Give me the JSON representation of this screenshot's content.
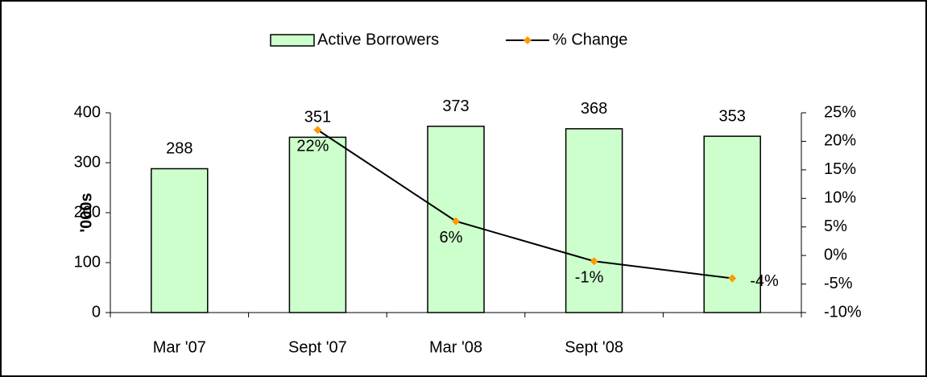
{
  "chart_data": {
    "type": "bar-line",
    "categories": [
      "Mar '07",
      "Sept '07",
      "Mar '08",
      "Sept '08",
      null
    ],
    "ylabel": "'000s",
    "ylim": [
      0,
      400
    ],
    "yticks": [
      0,
      100,
      200,
      300,
      400
    ],
    "y2lim": [
      -10,
      25
    ],
    "y2ticks": [
      {
        "value": -10,
        "label": "-10%"
      },
      {
        "value": -5,
        "label": "-5%"
      },
      {
        "value": 0,
        "label": "0%"
      },
      {
        "value": 5,
        "label": "5%"
      },
      {
        "value": 10,
        "label": "10%"
      },
      {
        "value": 15,
        "label": "15%"
      },
      {
        "value": 20,
        "label": "20%"
      },
      {
        "value": 25,
        "label": "25%"
      }
    ],
    "legend": "top",
    "series": [
      {
        "name": "Active Borrowers",
        "type": "bar",
        "color": "#ccffcc",
        "values": [
          288,
          351,
          373,
          368,
          353
        ]
      },
      {
        "name": "% Change",
        "type": "line",
        "axis": "y2",
        "color": "#000000",
        "marker_color": "#ff9900",
        "values": [
          null,
          22,
          6,
          -1,
          -4
        ],
        "value_labels": [
          null,
          "22%",
          "6%",
          "-1%",
          "-4%"
        ]
      }
    ]
  }
}
